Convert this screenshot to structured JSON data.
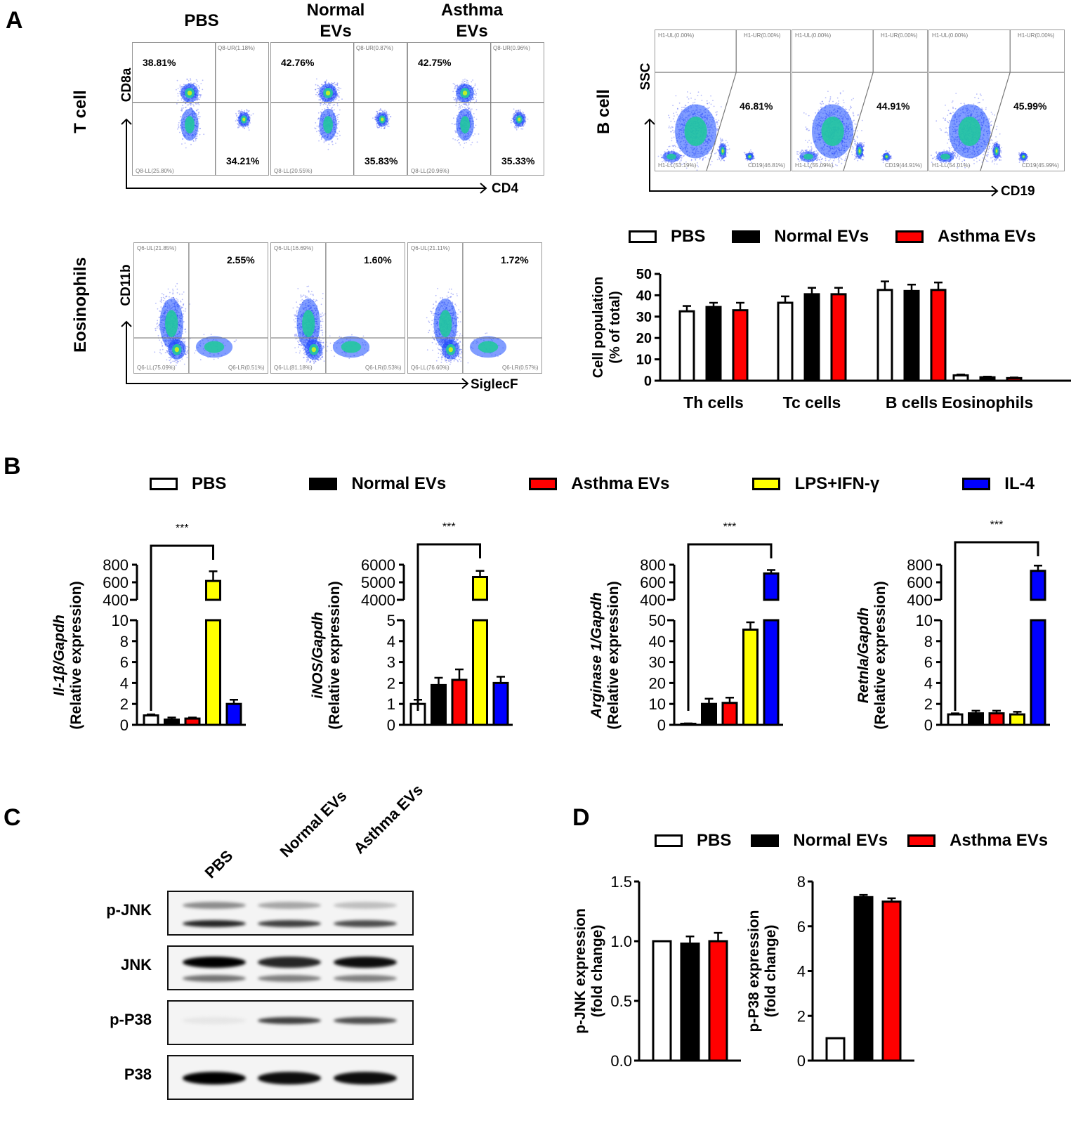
{
  "groups_abc": [
    "PBS",
    "Normal EVs",
    "Asthma EVs"
  ],
  "colors": {
    "PBS": "#ffffff",
    "Normal EVs": "#000000",
    "Asthma EVs": "#ff0000",
    "LPS+IFN-γ": "#ffff00",
    "IL-4": "#0000ff"
  },
  "panelA": {
    "letter": "A",
    "column_headers": [
      "PBS",
      "Normal\nEVs",
      "Asthma\nEVs"
    ],
    "tcell": {
      "row_label": "T cell",
      "x_axis": "CD4",
      "y_axis": "CD8a",
      "plots": [
        {
          "ul_pct": "38.81%",
          "lr_pct": "34.21%",
          "ur_q": "Q8-UR(1.18%)",
          "ll_q": "Q8-LL(25.80%)"
        },
        {
          "ul_pct": "42.76%",
          "lr_pct": "35.83%",
          "ur_q": "Q8-UR(0.87%)",
          "ll_q": "Q8-LL(20.55%)"
        },
        {
          "ul_pct": "42.75%",
          "lr_pct": "35.33%",
          "ur_q": "Q8-UR(0.96%)",
          "ll_q": "Q8-LL(20.96%)"
        }
      ]
    },
    "bcell": {
      "row_label": "B cell",
      "x_axis": "CD19",
      "y_axis": "SSC",
      "plots": [
        {
          "pct": "46.81%",
          "ul_q": "H1-UL(0.00%)",
          "ur_q": "H1-UR(0.00%)",
          "ll_q": "H1-LL(53.19%)",
          "lr_q": "CD19(46.81%)"
        },
        {
          "pct": "44.91%",
          "ul_q": "H1-UL(0.00%)",
          "ur_q": "H1-UR(0.00%)",
          "ll_q": "H1-LL(55.09%)",
          "lr_q": "CD19(44.91%)"
        },
        {
          "pct": "45.99%",
          "ul_q": "H1-UL(0.00%)",
          "ur_q": "H1-UR(0.00%)",
          "ll_q": "H1-LL(54.01%)",
          "lr_q": "CD19(45.99%)"
        }
      ]
    },
    "eos": {
      "row_label": "Eosinophils",
      "x_axis": "SiglecF",
      "y_axis": "CD11b",
      "plots": [
        {
          "ur_pct": "2.55%",
          "ul_q": "Q6-UL(21.85%)",
          "ll_q": "Q6-LL(75.09%)",
          "lr_q": "Q6-LR(0.51%)"
        },
        {
          "ur_pct": "1.60%",
          "ul_q": "Q6-UL(16.69%)",
          "ll_q": "Q6-LL(81.18%)",
          "lr_q": "Q6-LR(0.53%)"
        },
        {
          "ur_pct": "1.72%",
          "ul_q": "Q6-UL(21.11%)",
          "ll_q": "Q6-LL(76.60%)",
          "lr_q": "Q6-LR(0.57%)"
        }
      ]
    }
  },
  "panelB": {
    "letter": "B"
  },
  "panelC": {
    "letter": "C",
    "lanes": [
      "PBS",
      "Normal EVs",
      "Asthma EVs"
    ],
    "blots": [
      {
        "label": "p-JNK",
        "bands": [
          [
            0.45,
            0.85
          ],
          [
            0.35,
            0.75
          ],
          [
            0.25,
            0.7
          ]
        ]
      },
      {
        "label": "JNK",
        "bands": [
          [
            1.0,
            0.55
          ],
          [
            0.85,
            0.5
          ],
          [
            0.95,
            0.5
          ]
        ]
      },
      {
        "label": "p-P38",
        "bands": [
          [
            0.1
          ],
          [
            0.75
          ],
          [
            0.7
          ]
        ]
      },
      {
        "label": "P38",
        "bands": [
          [
            1.0
          ],
          [
            0.95
          ],
          [
            0.95
          ]
        ]
      }
    ]
  },
  "panelD": {
    "letter": "D"
  },
  "chart_data": [
    {
      "id": "A-summary",
      "type": "bar",
      "title": "",
      "legend": [
        "PBS",
        "Normal  EVs",
        "Asthma EVs"
      ],
      "legend_position": "top",
      "categories": [
        "Th cells",
        "Tc cells",
        "B cells",
        "Eosinophils"
      ],
      "series": [
        {
          "name": "PBS",
          "values": [
            32.5,
            36.5,
            42.5,
            2.5
          ],
          "errors": [
            2.5,
            3.0,
            4.0,
            0.4
          ]
        },
        {
          "name": "Normal EVs",
          "values": [
            34.5,
            40.5,
            42.0,
            1.6
          ],
          "errors": [
            2.0,
            3.0,
            3.0,
            0.3
          ]
        },
        {
          "name": "Asthma EVs",
          "values": [
            33.0,
            40.5,
            42.5,
            1.2
          ],
          "errors": [
            3.5,
            3.0,
            3.5,
            0.3
          ]
        }
      ],
      "xlabel": "",
      "ylabel": "Cell population\n(% of total)",
      "ylim": [
        0,
        50
      ],
      "yticks": [
        0,
        10,
        20,
        30,
        40,
        50
      ],
      "grid": false
    },
    {
      "id": "B-Il1b",
      "type": "bar",
      "legend": [
        "PBS",
        "Normal EVs",
        "Asthma EVs",
        "LPS+IFN-γ",
        "IL-4"
      ],
      "legend_position": "top",
      "categories": [
        "PBS",
        "Normal EVs",
        "Asthma EVs",
        "LPS+IFN-γ",
        "IL-4"
      ],
      "values": [
        0.9,
        0.5,
        0.6,
        615,
        2.0
      ],
      "errors": [
        0.1,
        0.2,
        0.1,
        110,
        0.4
      ],
      "ylabel_italic": "Il-1β/Gapdh",
      "ylabel": "(Relative expression)",
      "broken_axis": {
        "lower": [
          0,
          10
        ],
        "lower_ticks": [
          0,
          2,
          4,
          6,
          8,
          10
        ],
        "upper": [
          400,
          800
        ],
        "upper_ticks": [
          400,
          600,
          800
        ]
      },
      "significance": {
        "from": 0,
        "to": 3,
        "label": "***"
      }
    },
    {
      "id": "B-iNOS",
      "type": "bar",
      "categories": [
        "PBS",
        "Normal EVs",
        "Asthma EVs",
        "LPS+IFN-γ",
        "IL-4"
      ],
      "values": [
        1.0,
        1.9,
        2.15,
        5300,
        2.0
      ],
      "errors": [
        0.2,
        0.35,
        0.5,
        350,
        0.3
      ],
      "ylabel_italic": "iNOS/Gapdh",
      "ylabel": "(Relative expression)",
      "broken_axis": {
        "lower": [
          0,
          5
        ],
        "lower_ticks": [
          0,
          1,
          2,
          3,
          4,
          5
        ],
        "upper": [
          4000,
          6000
        ],
        "upper_ticks": [
          4000,
          5000,
          6000
        ]
      },
      "significance": {
        "from": 0,
        "to": 3,
        "label": "***"
      }
    },
    {
      "id": "B-Arg1",
      "type": "bar",
      "categories": [
        "PBS",
        "Normal EVs",
        "Asthma EVs",
        "LPS+IFN-γ",
        "IL-4"
      ],
      "values": [
        0.5,
        10,
        10.5,
        45.5,
        700
      ],
      "errors": [
        0.2,
        2.5,
        2.5,
        3.5,
        40
      ],
      "ylabel_italic": "Arginase 1/Gapdh",
      "ylabel": "(Relative expression)",
      "broken_axis": {
        "lower": [
          0,
          50
        ],
        "lower_ticks": [
          0,
          10,
          20,
          30,
          40,
          50
        ],
        "upper": [
          400,
          800
        ],
        "upper_ticks": [
          400,
          600,
          800
        ]
      },
      "significance": {
        "from": 0,
        "to": 4,
        "label": "***"
      }
    },
    {
      "id": "B-Retnla",
      "type": "bar",
      "categories": [
        "PBS",
        "Normal EVs",
        "Asthma EVs",
        "LPS+IFN-γ",
        "IL-4"
      ],
      "values": [
        1.0,
        1.1,
        1.1,
        1.0,
        730
      ],
      "errors": [
        0.1,
        0.25,
        0.25,
        0.25,
        60
      ],
      "ylabel_italic": "Retnla/Gapdh",
      "ylabel": "(Relative expression)",
      "broken_axis": {
        "lower": [
          0,
          10
        ],
        "lower_ticks": [
          0,
          2,
          4,
          6,
          8,
          10
        ],
        "upper": [
          400,
          800
        ],
        "upper_ticks": [
          400,
          600,
          800
        ]
      },
      "significance": {
        "from": 0,
        "to": 4,
        "label": "***"
      }
    },
    {
      "id": "D-pJNK",
      "type": "bar",
      "legend": [
        "PBS",
        "Normal EVs",
        "Asthma EVs"
      ],
      "legend_position": "top",
      "categories": [
        "PBS",
        "Normal EVs",
        "Asthma EVs"
      ],
      "values": [
        1.0,
        0.98,
        1.0
      ],
      "errors": [
        0,
        0.06,
        0.07
      ],
      "ylabel": "p-JNK expression\n(fold change)",
      "ylim": [
        0,
        1.5
      ],
      "yticks": [
        0.0,
        0.5,
        1.0,
        1.5
      ],
      "ytick_labels": [
        "0.0",
        "0.5",
        "1.0",
        "1.5"
      ]
    },
    {
      "id": "D-pP38",
      "type": "bar",
      "categories": [
        "PBS",
        "Normal EVs",
        "Asthma EVs"
      ],
      "values": [
        1.0,
        7.3,
        7.1
      ],
      "errors": [
        0,
        0.1,
        0.15
      ],
      "ylabel": "p-P38 expression\n(fold change)",
      "ylim": [
        0,
        8
      ],
      "yticks": [
        0,
        2,
        4,
        6,
        8
      ],
      "ytick_labels": [
        "0",
        "2",
        "4",
        "6",
        "8"
      ]
    }
  ]
}
